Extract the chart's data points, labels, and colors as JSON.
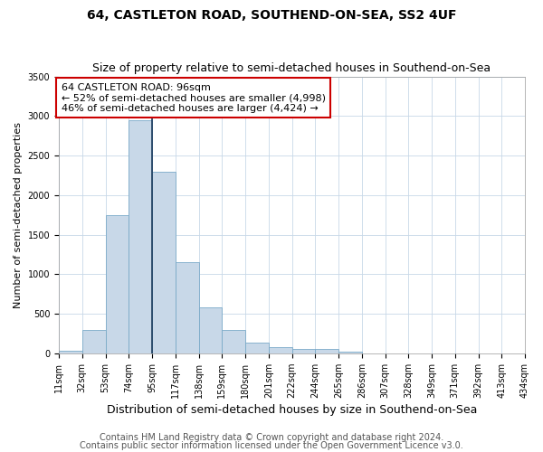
{
  "title": "64, CASTLETON ROAD, SOUTHEND-ON-SEA, SS2 4UF",
  "subtitle": "Size of property relative to semi-detached houses in Southend-on-Sea",
  "xlabel": "Distribution of semi-detached houses by size in Southend-on-Sea",
  "ylabel": "Number of semi-detached properties",
  "footnote1": "Contains HM Land Registry data © Crown copyright and database right 2024.",
  "footnote2": "Contains public sector information licensed under the Open Government Licence v3.0.",
  "bin_labels": [
    "11sqm",
    "32sqm",
    "53sqm",
    "74sqm",
    "95sqm",
    "117sqm",
    "138sqm",
    "159sqm",
    "180sqm",
    "201sqm",
    "222sqm",
    "244sqm",
    "265sqm",
    "286sqm",
    "307sqm",
    "328sqm",
    "349sqm",
    "371sqm",
    "392sqm",
    "413sqm",
    "434sqm"
  ],
  "values": [
    30,
    300,
    1750,
    2950,
    2300,
    1150,
    580,
    295,
    130,
    75,
    55,
    50,
    20,
    0,
    0,
    0,
    0,
    0,
    0,
    0
  ],
  "bar_color": "#c8d8e8",
  "bar_edge_color": "#7aaac8",
  "property_line_x": 4,
  "property_line_color": "#1a3a5c",
  "annotation_line1": "64 CASTLETON ROAD: 96sqm",
  "annotation_line2": "← 52% of semi-detached houses are smaller (4,998)",
  "annotation_line3": "46% of semi-detached houses are larger (4,424) →",
  "annotation_box_color": "#ffffff",
  "annotation_box_edge_color": "#cc0000",
  "ylim": [
    0,
    3500
  ],
  "yticks": [
    0,
    500,
    1000,
    1500,
    2000,
    2500,
    3000,
    3500
  ],
  "title_fontsize": 10,
  "subtitle_fontsize": 9,
  "xlabel_fontsize": 9,
  "ylabel_fontsize": 8,
  "tick_fontsize": 7,
  "annotation_fontsize": 8,
  "footnote_fontsize": 7,
  "background_color": "#ffffff",
  "grid_color": "#c8d8e8"
}
